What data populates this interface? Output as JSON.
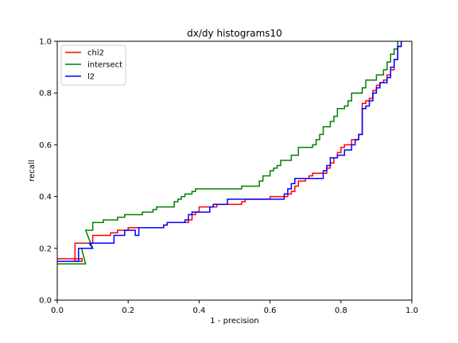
{
  "chart_data": {
    "type": "line",
    "title": "dx/dy histograms10",
    "xlabel": "1 - precision",
    "ylabel": "recall",
    "xlim": [
      0.0,
      1.0
    ],
    "ylim": [
      0.0,
      1.0
    ],
    "xticks": [
      "0.0",
      "0.2",
      "0.4",
      "0.6",
      "0.8",
      "1.0"
    ],
    "yticks": [
      "0.0",
      "0.2",
      "0.4",
      "0.6",
      "0.8",
      "1.0"
    ],
    "grid": false,
    "legend_position": "top-left",
    "series": [
      {
        "name": "chi2",
        "color": "#ff0000",
        "points": [
          [
            0.0,
            0.16
          ],
          [
            0.07,
            0.16
          ],
          [
            0.07,
            0.15
          ],
          [
            0.05,
            0.15
          ],
          [
            0.05,
            0.22
          ],
          [
            0.1,
            0.22
          ],
          [
            0.1,
            0.25
          ],
          [
            0.15,
            0.25
          ],
          [
            0.15,
            0.26
          ],
          [
            0.17,
            0.26
          ],
          [
            0.17,
            0.27
          ],
          [
            0.2,
            0.27
          ],
          [
            0.2,
            0.28
          ],
          [
            0.25,
            0.28
          ],
          [
            0.3,
            0.28
          ],
          [
            0.3,
            0.29
          ],
          [
            0.31,
            0.29
          ],
          [
            0.31,
            0.3
          ],
          [
            0.37,
            0.3
          ],
          [
            0.37,
            0.31
          ],
          [
            0.38,
            0.31
          ],
          [
            0.38,
            0.32
          ],
          [
            0.38,
            0.33
          ],
          [
            0.39,
            0.33
          ],
          [
            0.39,
            0.34
          ],
          [
            0.4,
            0.34
          ],
          [
            0.4,
            0.36
          ],
          [
            0.45,
            0.36
          ],
          [
            0.45,
            0.37
          ],
          [
            0.52,
            0.37
          ],
          [
            0.52,
            0.38
          ],
          [
            0.53,
            0.38
          ],
          [
            0.53,
            0.39
          ],
          [
            0.6,
            0.39
          ],
          [
            0.6,
            0.4
          ],
          [
            0.65,
            0.4
          ],
          [
            0.65,
            0.41
          ],
          [
            0.66,
            0.41
          ],
          [
            0.66,
            0.42
          ],
          [
            0.67,
            0.42
          ],
          [
            0.67,
            0.44
          ],
          [
            0.68,
            0.44
          ],
          [
            0.68,
            0.46
          ],
          [
            0.7,
            0.46
          ],
          [
            0.7,
            0.47
          ],
          [
            0.71,
            0.47
          ],
          [
            0.71,
            0.48
          ],
          [
            0.72,
            0.48
          ],
          [
            0.72,
            0.49
          ],
          [
            0.76,
            0.49
          ],
          [
            0.76,
            0.51
          ],
          [
            0.77,
            0.51
          ],
          [
            0.77,
            0.53
          ],
          [
            0.78,
            0.53
          ],
          [
            0.78,
            0.55
          ],
          [
            0.79,
            0.55
          ],
          [
            0.79,
            0.57
          ],
          [
            0.8,
            0.57
          ],
          [
            0.8,
            0.59
          ],
          [
            0.81,
            0.59
          ],
          [
            0.81,
            0.6
          ],
          [
            0.83,
            0.6
          ],
          [
            0.83,
            0.62
          ],
          [
            0.85,
            0.62
          ],
          [
            0.85,
            0.64
          ],
          [
            0.86,
            0.64
          ],
          [
            0.86,
            0.76
          ],
          [
            0.87,
            0.76
          ],
          [
            0.87,
            0.77
          ],
          [
            0.88,
            0.77
          ],
          [
            0.88,
            0.78
          ],
          [
            0.89,
            0.78
          ],
          [
            0.89,
            0.81
          ],
          [
            0.9,
            0.81
          ],
          [
            0.9,
            0.83
          ],
          [
            0.91,
            0.83
          ],
          [
            0.91,
            0.84
          ],
          [
            0.92,
            0.84
          ],
          [
            0.92,
            0.85
          ],
          [
            0.93,
            0.85
          ],
          [
            0.93,
            0.87
          ],
          [
            0.94,
            0.87
          ],
          [
            0.94,
            0.89
          ],
          [
            0.95,
            0.89
          ],
          [
            0.95,
            0.93
          ],
          [
            0.96,
            0.93
          ],
          [
            0.96,
            0.98
          ],
          [
            0.97,
            0.98
          ],
          [
            0.97,
            1.0
          ]
        ]
      },
      {
        "name": "intersect",
        "color": "#008000",
        "points": [
          [
            0.0,
            0.14
          ],
          [
            0.08,
            0.14
          ],
          [
            0.07,
            0.19
          ],
          [
            0.07,
            0.2
          ],
          [
            0.1,
            0.2
          ],
          [
            0.08,
            0.27
          ],
          [
            0.1,
            0.27
          ],
          [
            0.1,
            0.3
          ],
          [
            0.13,
            0.3
          ],
          [
            0.13,
            0.31
          ],
          [
            0.17,
            0.31
          ],
          [
            0.17,
            0.32
          ],
          [
            0.19,
            0.32
          ],
          [
            0.19,
            0.33
          ],
          [
            0.24,
            0.33
          ],
          [
            0.24,
            0.34
          ],
          [
            0.27,
            0.34
          ],
          [
            0.27,
            0.35
          ],
          [
            0.28,
            0.35
          ],
          [
            0.28,
            0.36
          ],
          [
            0.33,
            0.36
          ],
          [
            0.33,
            0.38
          ],
          [
            0.34,
            0.38
          ],
          [
            0.34,
            0.39
          ],
          [
            0.35,
            0.39
          ],
          [
            0.35,
            0.4
          ],
          [
            0.36,
            0.4
          ],
          [
            0.36,
            0.41
          ],
          [
            0.38,
            0.41
          ],
          [
            0.38,
            0.42
          ],
          [
            0.39,
            0.42
          ],
          [
            0.39,
            0.43
          ],
          [
            0.52,
            0.43
          ],
          [
            0.52,
            0.44
          ],
          [
            0.57,
            0.44
          ],
          [
            0.57,
            0.46
          ],
          [
            0.58,
            0.46
          ],
          [
            0.58,
            0.48
          ],
          [
            0.6,
            0.48
          ],
          [
            0.6,
            0.5
          ],
          [
            0.61,
            0.5
          ],
          [
            0.61,
            0.51
          ],
          [
            0.62,
            0.51
          ],
          [
            0.62,
            0.52
          ],
          [
            0.63,
            0.52
          ],
          [
            0.63,
            0.54
          ],
          [
            0.66,
            0.54
          ],
          [
            0.66,
            0.56
          ],
          [
            0.68,
            0.56
          ],
          [
            0.68,
            0.59
          ],
          [
            0.72,
            0.59
          ],
          [
            0.72,
            0.6
          ],
          [
            0.73,
            0.6
          ],
          [
            0.73,
            0.62
          ],
          [
            0.74,
            0.62
          ],
          [
            0.74,
            0.64
          ],
          [
            0.75,
            0.64
          ],
          [
            0.75,
            0.67
          ],
          [
            0.77,
            0.67
          ],
          [
            0.77,
            0.69
          ],
          [
            0.78,
            0.69
          ],
          [
            0.78,
            0.71
          ],
          [
            0.79,
            0.71
          ],
          [
            0.79,
            0.74
          ],
          [
            0.81,
            0.74
          ],
          [
            0.81,
            0.75
          ],
          [
            0.82,
            0.75
          ],
          [
            0.82,
            0.77
          ],
          [
            0.83,
            0.77
          ],
          [
            0.83,
            0.8
          ],
          [
            0.86,
            0.8
          ],
          [
            0.86,
            0.82
          ],
          [
            0.87,
            0.82
          ],
          [
            0.87,
            0.85
          ],
          [
            0.9,
            0.85
          ],
          [
            0.9,
            0.87
          ],
          [
            0.92,
            0.87
          ],
          [
            0.92,
            0.89
          ],
          [
            0.93,
            0.89
          ],
          [
            0.93,
            0.92
          ],
          [
            0.94,
            0.92
          ],
          [
            0.94,
            0.95
          ],
          [
            0.95,
            0.95
          ],
          [
            0.95,
            0.97
          ],
          [
            0.96,
            0.97
          ],
          [
            0.96,
            1.0
          ]
        ]
      },
      {
        "name": "l2",
        "color": "#0000ff",
        "points": [
          [
            0.0,
            0.15
          ],
          [
            0.06,
            0.15
          ],
          [
            0.06,
            0.2
          ],
          [
            0.1,
            0.2
          ],
          [
            0.09,
            0.22
          ],
          [
            0.16,
            0.22
          ],
          [
            0.16,
            0.25
          ],
          [
            0.19,
            0.25
          ],
          [
            0.19,
            0.27
          ],
          [
            0.22,
            0.27
          ],
          [
            0.22,
            0.25
          ],
          [
            0.23,
            0.25
          ],
          [
            0.23,
            0.28
          ],
          [
            0.3,
            0.28
          ],
          [
            0.3,
            0.29
          ],
          [
            0.31,
            0.29
          ],
          [
            0.31,
            0.3
          ],
          [
            0.36,
            0.3
          ],
          [
            0.36,
            0.31
          ],
          [
            0.37,
            0.31
          ],
          [
            0.37,
            0.33
          ],
          [
            0.38,
            0.33
          ],
          [
            0.38,
            0.34
          ],
          [
            0.43,
            0.34
          ],
          [
            0.43,
            0.36
          ],
          [
            0.44,
            0.36
          ],
          [
            0.44,
            0.37
          ],
          [
            0.48,
            0.37
          ],
          [
            0.48,
            0.39
          ],
          [
            0.64,
            0.39
          ],
          [
            0.64,
            0.41
          ],
          [
            0.65,
            0.41
          ],
          [
            0.65,
            0.43
          ],
          [
            0.66,
            0.43
          ],
          [
            0.66,
            0.45
          ],
          [
            0.67,
            0.45
          ],
          [
            0.67,
            0.47
          ],
          [
            0.75,
            0.47
          ],
          [
            0.75,
            0.5
          ],
          [
            0.76,
            0.5
          ],
          [
            0.76,
            0.52
          ],
          [
            0.77,
            0.52
          ],
          [
            0.77,
            0.55
          ],
          [
            0.79,
            0.55
          ],
          [
            0.79,
            0.56
          ],
          [
            0.81,
            0.56
          ],
          [
            0.81,
            0.58
          ],
          [
            0.83,
            0.58
          ],
          [
            0.83,
            0.6
          ],
          [
            0.84,
            0.6
          ],
          [
            0.84,
            0.62
          ],
          [
            0.85,
            0.62
          ],
          [
            0.85,
            0.64
          ],
          [
            0.86,
            0.64
          ],
          [
            0.86,
            0.74
          ],
          [
            0.87,
            0.74
          ],
          [
            0.87,
            0.75
          ],
          [
            0.88,
            0.75
          ],
          [
            0.88,
            0.77
          ],
          [
            0.89,
            0.77
          ],
          [
            0.89,
            0.8
          ],
          [
            0.9,
            0.8
          ],
          [
            0.9,
            0.82
          ],
          [
            0.91,
            0.82
          ],
          [
            0.91,
            0.84
          ],
          [
            0.93,
            0.84
          ],
          [
            0.93,
            0.86
          ],
          [
            0.94,
            0.86
          ],
          [
            0.94,
            0.9
          ],
          [
            0.95,
            0.9
          ],
          [
            0.95,
            0.93
          ],
          [
            0.96,
            0.93
          ],
          [
            0.96,
            0.98
          ],
          [
            0.97,
            0.98
          ],
          [
            0.97,
            1.0
          ]
        ]
      }
    ]
  }
}
